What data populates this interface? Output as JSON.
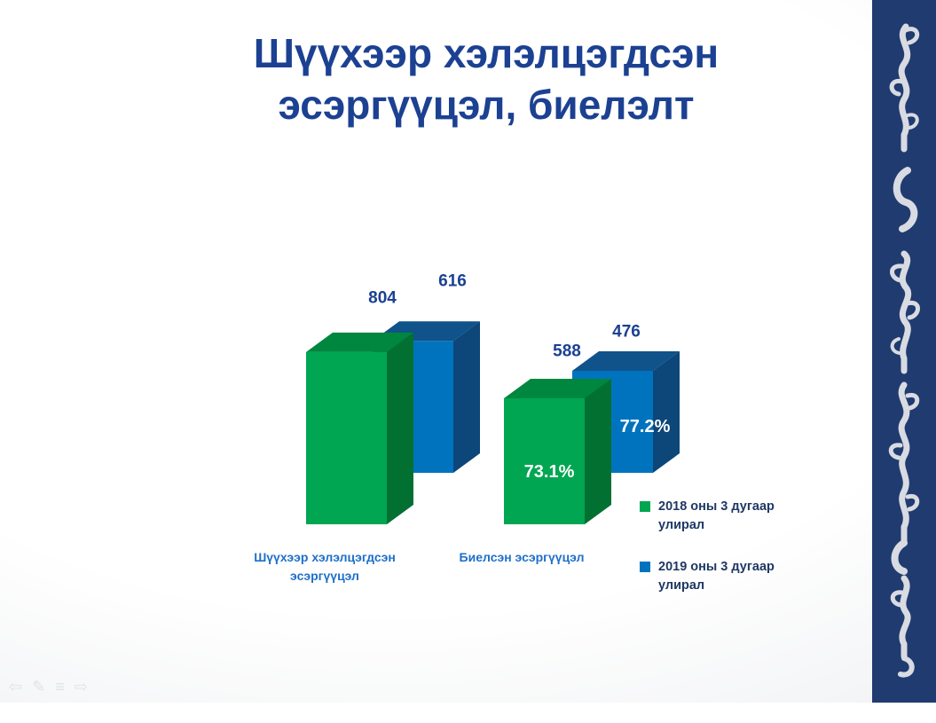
{
  "slide": {
    "title": "Шүүхээр хэлэлцэгдсэн эсэргүүцэл, биелэлт"
  },
  "chart_data": {
    "type": "bar",
    "projection": "3d-clustered",
    "title": "Шүүхээр хэлэлцэгдсэн эсэргүүцэл, биелэлт",
    "categories": [
      "Шүүхээр хэлэлцэгдсэн эсэргүүцэл",
      "Биелсэн эсэргүүцэл"
    ],
    "series": [
      {
        "name": "2018 оны 3 дугаар улирал",
        "values": [
          804,
          588
        ],
        "inner_labels": [
          "",
          "73.1%"
        ],
        "faces": {
          "front": "#00A651",
          "top": "#00873F",
          "side": "#027031"
        }
      },
      {
        "name": "2019 оны 3 дугаар улирал",
        "values": [
          616,
          476
        ],
        "inner_labels": [
          "",
          "77.2%"
        ],
        "faces": {
          "front": "#0073BE",
          "top": "#10528A",
          "side": "#0D4678"
        }
      }
    ],
    "legend_position": "right",
    "axes_visible": false,
    "gridlines": false,
    "value_labels_visible": true
  },
  "colors": {
    "title_text": "#1C4192",
    "value_label": "#1C4192",
    "category_label": "#1E6FC9",
    "legend_text": "#1F3864",
    "inner_label": "#FFFFFF",
    "sidebar_band": "#203B70",
    "sidebar_script": "#D8DBE2",
    "slide_bg_edge": "#E9EBEE"
  },
  "sidebar": {
    "decoration": "mongolian-calligraphy"
  },
  "toolbar": {
    "icons": [
      {
        "name": "previous-slide",
        "glyph": "⇦"
      },
      {
        "name": "pen-tool",
        "glyph": "✎"
      },
      {
        "name": "slideshow-menu",
        "glyph": "≡"
      },
      {
        "name": "next-slide",
        "glyph": "⇨"
      }
    ]
  }
}
